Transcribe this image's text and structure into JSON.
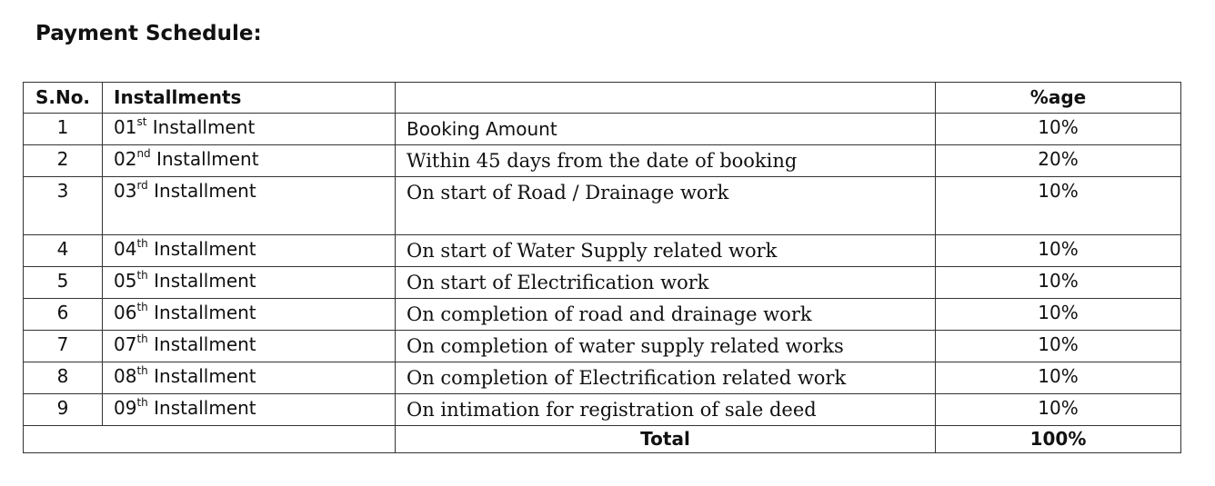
{
  "title": "Payment Schedule:",
  "headers": {
    "sno": "S.No.",
    "installments": "Installments",
    "description": "",
    "percentage": "%age"
  },
  "rows": [
    {
      "sno": "1",
      "num": "01",
      "suffix": "st",
      "label": "Installment",
      "description": "Booking Amount",
      "percentage": "10%"
    },
    {
      "sno": "2",
      "num": "02",
      "suffix": "nd",
      "label": "Installment",
      "description": "Within 45 days from the date of booking",
      "percentage": "20%"
    },
    {
      "sno": "3",
      "num": "03",
      "suffix": "rd",
      "label": "Installment",
      "description": "On start of Road / Drainage work",
      "percentage": "10%"
    },
    {
      "sno": "4",
      "num": "04",
      "suffix": "th",
      "label": "Installment",
      "description": "On start of Water Supply related work",
      "percentage": "10%"
    },
    {
      "sno": "5",
      "num": "05",
      "suffix": "th",
      "label": "Installment",
      "description": "On start of Electrification work",
      "percentage": "10%"
    },
    {
      "sno": "6",
      "num": "06",
      "suffix": "th",
      "label": "Installment",
      "description": "On completion of road and drainage work",
      "percentage": "10%"
    },
    {
      "sno": "7",
      "num": "07",
      "suffix": "th",
      "label": "Installment",
      "description": "On completion of water supply related works",
      "percentage": "10%"
    },
    {
      "sno": "8",
      "num": "08",
      "suffix": "th",
      "label": "Installment",
      "description": "On completion of Electrification related work",
      "percentage": "10%"
    },
    {
      "sno": "9",
      "num": "09",
      "suffix": "th",
      "label": "Installment",
      "description": "On intimation for registration of sale deed",
      "percentage": "10%"
    }
  ],
  "total": {
    "label": "Total",
    "percentage": "100%"
  }
}
